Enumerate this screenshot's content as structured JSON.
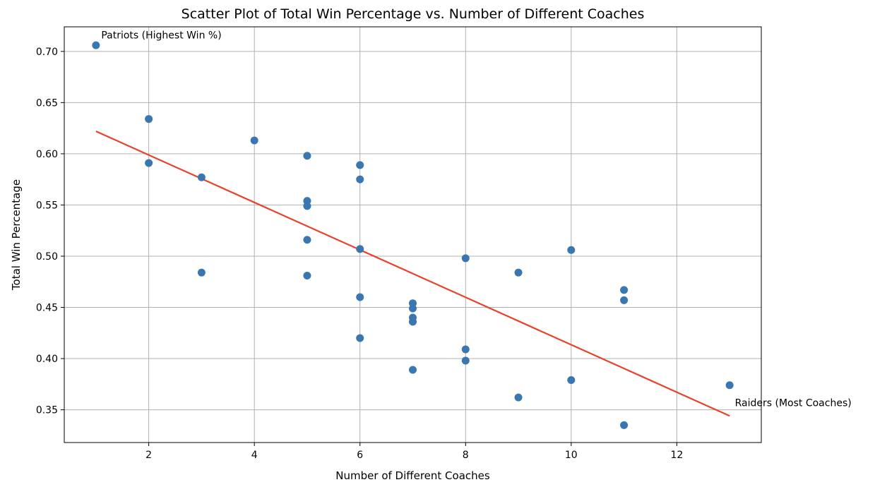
{
  "chart_data": {
    "type": "scatter",
    "title": "Scatter Plot of Total Win Percentage vs. Number of Different Coaches",
    "xlabel": "Number of Different Coaches",
    "ylabel": "Total Win Percentage",
    "xlim": [
      0.4,
      13.6
    ],
    "ylim": [
      0.318,
      0.724
    ],
    "xticks": [
      2,
      4,
      6,
      8,
      10,
      12
    ],
    "yticks": [
      0.35,
      0.4,
      0.45,
      0.5,
      0.55,
      0.6,
      0.65,
      0.7
    ],
    "xtick_labels": [
      "2",
      "4",
      "6",
      "8",
      "10",
      "12"
    ],
    "ytick_labels": [
      "0.35",
      "0.40",
      "0.45",
      "0.50",
      "0.55",
      "0.60",
      "0.65",
      "0.70"
    ],
    "grid": true,
    "colors": {
      "points": "#3a76af",
      "trend": "#e8412c",
      "grid": "#b0b0b0",
      "axes": "#000000"
    },
    "points": [
      {
        "x": 1,
        "y": 0.706
      },
      {
        "x": 2,
        "y": 0.634
      },
      {
        "x": 2,
        "y": 0.591
      },
      {
        "x": 3,
        "y": 0.577
      },
      {
        "x": 3,
        "y": 0.484
      },
      {
        "x": 4,
        "y": 0.613
      },
      {
        "x": 5,
        "y": 0.598
      },
      {
        "x": 5,
        "y": 0.554
      },
      {
        "x": 5,
        "y": 0.549
      },
      {
        "x": 5,
        "y": 0.516
      },
      {
        "x": 5,
        "y": 0.481
      },
      {
        "x": 6,
        "y": 0.589
      },
      {
        "x": 6,
        "y": 0.575
      },
      {
        "x": 6,
        "y": 0.507
      },
      {
        "x": 6,
        "y": 0.46
      },
      {
        "x": 6,
        "y": 0.42
      },
      {
        "x": 7,
        "y": 0.454
      },
      {
        "x": 7,
        "y": 0.449
      },
      {
        "x": 7,
        "y": 0.44
      },
      {
        "x": 7,
        "y": 0.436
      },
      {
        "x": 7,
        "y": 0.389
      },
      {
        "x": 8,
        "y": 0.498
      },
      {
        "x": 8,
        "y": 0.409
      },
      {
        "x": 8,
        "y": 0.398
      },
      {
        "x": 9,
        "y": 0.484
      },
      {
        "x": 9,
        "y": 0.362
      },
      {
        "x": 10,
        "y": 0.506
      },
      {
        "x": 10,
        "y": 0.379
      },
      {
        "x": 11,
        "y": 0.467
      },
      {
        "x": 11,
        "y": 0.457
      },
      {
        "x": 11,
        "y": 0.335
      },
      {
        "x": 13,
        "y": 0.374
      }
    ],
    "trend_line": {
      "x": [
        1,
        13
      ],
      "y": [
        0.622,
        0.344
      ]
    },
    "annotations": [
      {
        "text": "Patriots (Highest Win %)",
        "x": 1.1,
        "y": 0.716
      },
      {
        "text": "Raiders (Most Coaches)",
        "x": 13.1,
        "y": 0.357
      }
    ]
  }
}
